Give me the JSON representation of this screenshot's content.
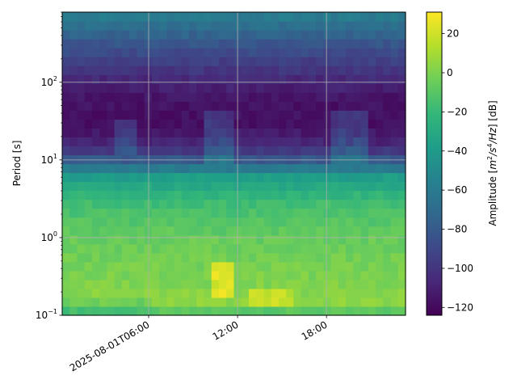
{
  "chart_data": {
    "type": "heatmap",
    "title": "",
    "xlabel": "",
    "ylabel": "Period [s]",
    "y_scale": "log",
    "ylim": [
      0.1,
      800
    ],
    "xlim": [
      "2025-08-01T00:10:00",
      "2025-08-01T23:20:00"
    ],
    "x_ticks": [
      {
        "value": "2025-08-01T06:00:00",
        "label": "2025-08-01T06:00"
      },
      {
        "value": "2025-08-01T12:00:00",
        "label": "12:00"
      },
      {
        "value": "2025-08-01T18:00:00",
        "label": "18:00"
      }
    ],
    "y_ticks": [
      {
        "value": 0.1,
        "base": "10",
        "exp": "−1"
      },
      {
        "value": 1,
        "base": "10",
        "exp": "0"
      },
      {
        "value": 10,
        "base": "10",
        "exp": "1"
      },
      {
        "value": 100,
        "base": "10",
        "exp": "2"
      }
    ],
    "grid": true,
    "colormap": "viridis",
    "colorbar": {
      "label_prefix": "Amplitude [",
      "label_unit_base": "m",
      "label_unit_exp1": "2",
      "label_unit_mid": "/s",
      "label_unit_exp2": "4",
      "label_unit_tail": "/Hz",
      "label_suffix": "] [dB]",
      "range": [
        -124,
        31
      ],
      "ticks": [
        20,
        0,
        -20,
        -40,
        -60,
        -80,
        -100,
        -120
      ],
      "tick_labels": [
        "20",
        "0",
        "−20",
        "−40",
        "−60",
        "−80",
        "−100",
        "−120"
      ]
    },
    "period_profile_db": [
      {
        "period": 0.1,
        "value": -16
      },
      {
        "period": 0.15,
        "value": 4
      },
      {
        "period": 0.3,
        "value": 0
      },
      {
        "period": 1,
        "value": -6
      },
      {
        "period": 3,
        "value": -18
      },
      {
        "period": 6,
        "value": -38
      },
      {
        "period": 10,
        "value": -80
      },
      {
        "period": 15,
        "value": -106
      },
      {
        "period": 30,
        "value": -118
      },
      {
        "period": 60,
        "value": -116
      },
      {
        "period": 100,
        "value": -108
      },
      {
        "period": 300,
        "value": -84
      },
      {
        "period": 800,
        "value": -56
      }
    ],
    "anomalies": [
      {
        "hour_start": 10.2,
        "hour_end": 11.8,
        "period_min": 0.16,
        "period_max": 0.45,
        "delta_db": 28
      },
      {
        "hour_start": 12.6,
        "hour_end": 15.8,
        "period_min": 0.12,
        "period_max": 0.22,
        "delta_db": 18
      },
      {
        "hour_start": 3.5,
        "hour_end": 5.0,
        "period_min": 12,
        "period_max": 35,
        "delta_db": 20
      },
      {
        "hour_start": 9.5,
        "hour_end": 12.0,
        "period_min": 10,
        "period_max": 40,
        "delta_db": 22
      },
      {
        "hour_start": 18.3,
        "hour_end": 21.0,
        "period_min": 10,
        "period_max": 40,
        "delta_db": 22
      },
      {
        "hour_start": 0.2,
        "hour_end": 6.0,
        "period_min": 0.1,
        "period_max": 0.16,
        "delta_db": -8
      }
    ]
  }
}
